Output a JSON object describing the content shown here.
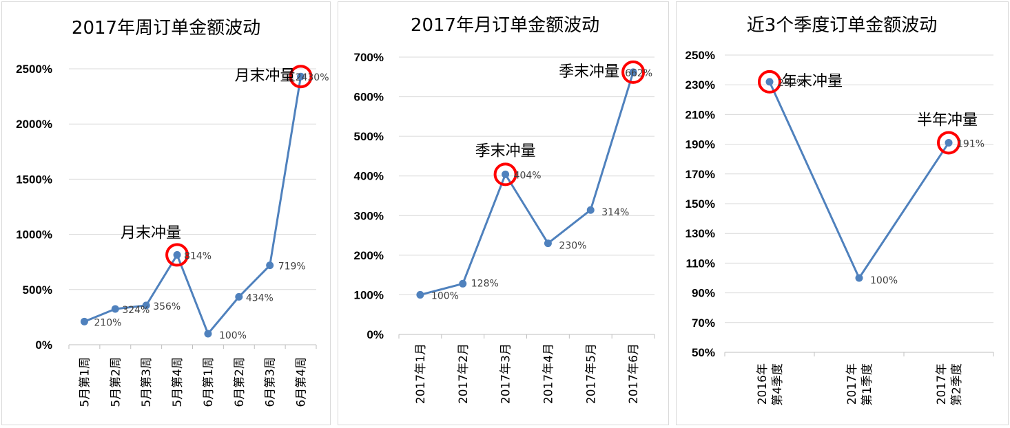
{
  "chart_data": [
    {
      "type": "line",
      "title": "2017年周订单金额波动",
      "categories": [
        "5月第1周",
        "5月第2周",
        "5月第3周",
        "5月第4周",
        "6月第1周",
        "6月第2周",
        "6月第3周",
        "6月第4周"
      ],
      "values": [
        210,
        324,
        356,
        814,
        100,
        434,
        719,
        2430
      ],
      "data_labels": [
        "210%",
        "324%",
        "356%",
        "814%",
        "100%",
        "434%",
        "719%",
        "2430%"
      ],
      "ylim": [
        0,
        2500
      ],
      "yticks": [
        0,
        500,
        1000,
        1500,
        2000,
        2500
      ],
      "ytick_labels": [
        "0%",
        "500%",
        "1000%",
        "1500%",
        "2000%",
        "2500%"
      ],
      "grid": true,
      "line_color": "#4f81bd",
      "highlight_color": "#ff0000",
      "annotations": [
        {
          "text": "月末冲量",
          "index": 3
        },
        {
          "text": "月末冲量",
          "index": 7
        }
      ]
    },
    {
      "type": "line",
      "title": "2017年月订单金额波动",
      "categories": [
        "2017年1月",
        "2017年2月",
        "2017年3月",
        "2017年4月",
        "2017年5月",
        "2017年6月"
      ],
      "values": [
        100,
        128,
        404,
        230,
        314,
        662
      ],
      "data_labels": [
        "100%",
        "128%",
        "404%",
        "230%",
        "314%",
        "662%"
      ],
      "ylim": [
        0,
        700
      ],
      "yticks": [
        0,
        100,
        200,
        300,
        400,
        500,
        600,
        700
      ],
      "ytick_labels": [
        "0%",
        "100%",
        "200%",
        "300%",
        "400%",
        "500%",
        "600%",
        "700%"
      ],
      "grid": true,
      "line_color": "#4f81bd",
      "highlight_color": "#ff0000",
      "annotations": [
        {
          "text": "季末冲量",
          "index": 2
        },
        {
          "text": "季末冲量",
          "index": 5
        }
      ]
    },
    {
      "type": "line",
      "title": "近3个季度订单金额波动",
      "categories": [
        "2016年第4季度",
        "2017年第1季度",
        "2017年第2季度"
      ],
      "category_lines": [
        [
          "2016年",
          "第4季度"
        ],
        [
          "2017年",
          "第1季度"
        ],
        [
          "2017年",
          "第2季度"
        ]
      ],
      "values": [
        232,
        100,
        191
      ],
      "data_labels": [
        "232%",
        "100%",
        "191%"
      ],
      "ylim": [
        50,
        250
      ],
      "yticks": [
        50,
        70,
        90,
        110,
        130,
        150,
        170,
        190,
        210,
        230,
        250
      ],
      "ytick_labels": [
        "50%",
        "70%",
        "90%",
        "110%",
        "130%",
        "150%",
        "170%",
        "190%",
        "210%",
        "230%",
        "250%"
      ],
      "grid": true,
      "line_color": "#4f81bd",
      "highlight_color": "#ff0000",
      "annotations": [
        {
          "text": "年末冲量",
          "index": 0
        },
        {
          "text": "半年冲量",
          "index": 2
        }
      ]
    }
  ]
}
